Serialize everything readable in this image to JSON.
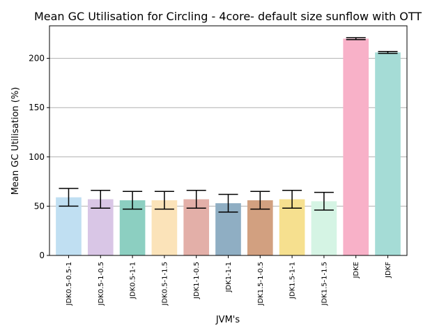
{
  "chart_data": {
    "type": "bar",
    "title": "Mean GC Utilisation for Circling - 4core- default size sunflow with OTT",
    "xlabel": "JVM's",
    "ylabel": "Mean GC Utilisation (%)",
    "ylim": [
      0,
      233
    ],
    "yticks": [
      0,
      50,
      100,
      150,
      200
    ],
    "grid": "y",
    "categories": [
      "JDK0.5-0.5-1",
      "JDK0.5-1-0.5",
      "JDK0.5-1-1",
      "JDK0.5-1-1.5",
      "JDK1-1-0.5",
      "JDK1-1-1",
      "JDK1.5-1-0.5",
      "JDK1.5-1-1",
      "JDK1.5-1-1.5",
      "JDKE",
      "JDKF"
    ],
    "values": [
      59,
      57,
      56,
      56,
      57,
      53,
      56,
      57,
      55,
      220,
      206
    ],
    "errors": [
      9,
      9,
      9,
      9,
      9,
      9,
      9,
      9,
      9,
      1,
      1
    ],
    "colors": [
      "#c0dff2",
      "#d9c6e6",
      "#8ccfc1",
      "#fbe3b9",
      "#e3afa8",
      "#8faec3",
      "#d2a080",
      "#f6e08f",
      "#d5f4e4",
      "#f8b1c8",
      "#a5dcd6"
    ]
  }
}
